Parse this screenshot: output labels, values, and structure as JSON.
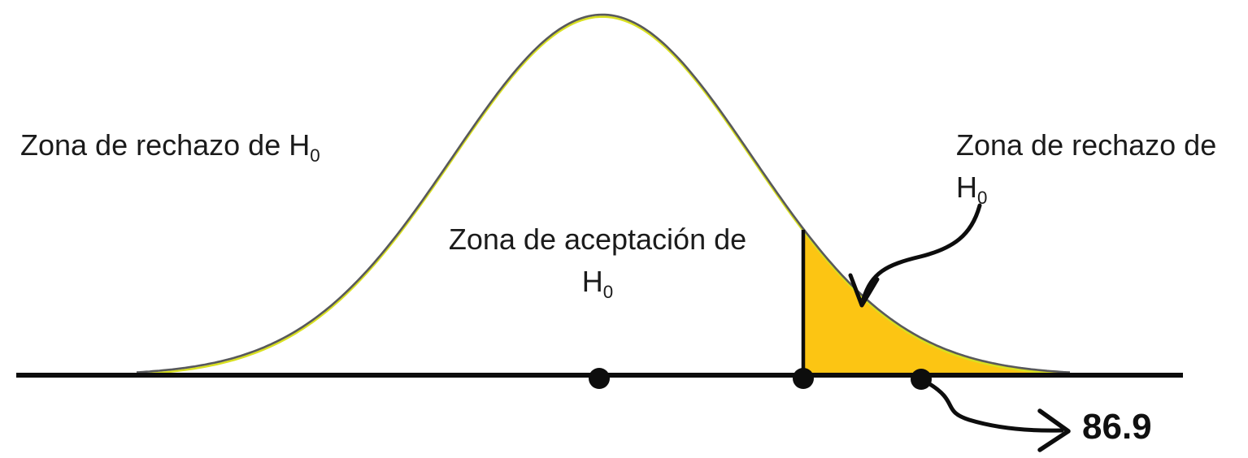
{
  "labels": {
    "left_zone": {
      "text": "Zona de rechazo de H",
      "sub": "0"
    },
    "center_zone": {
      "line1": "Zona de aceptación de",
      "line2_text": "H",
      "line2_sub": "0"
    },
    "right_zone": {
      "line1": "Zona de rechazo de",
      "line2_text": "H",
      "line2_sub": "0"
    },
    "observed_value": "86.9"
  },
  "colors": {
    "tail_fill": "#FCC513",
    "curve_stroke": "#58595B",
    "curve_edge": "#D9E021",
    "ink": "#0D0D0D"
  }
}
